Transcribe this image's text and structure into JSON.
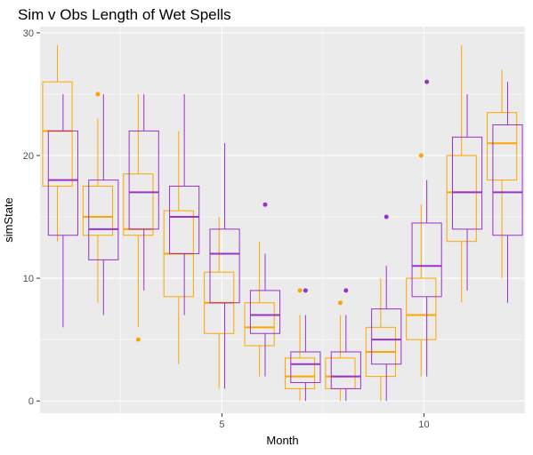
{
  "chart_data": {
    "type": "boxplot",
    "title": "Sim v Obs Length of Wet Spells",
    "xlabel": "Month",
    "ylabel": "simState",
    "xlim": [
      0.5,
      12.5
    ],
    "ylim": [
      -1,
      30.5
    ],
    "xticks": [
      5,
      10
    ],
    "yticks": [
      0,
      10,
      20,
      30
    ],
    "grid": true,
    "legend": "none",
    "colors": {
      "obs": "#FFA500",
      "sim": "#9932CC",
      "panel": "#EBEBEB",
      "grid": "#FFFFFF"
    },
    "series": [
      {
        "name": "obs",
        "color": "#FFA500",
        "boxes": [
          {
            "month": 1,
            "min": 13,
            "q1": 17.5,
            "median": 22,
            "q3": 26,
            "max": 29,
            "outliers": []
          },
          {
            "month": 2,
            "min": 8,
            "q1": 13.5,
            "median": 15,
            "q3": 17.5,
            "max": 23,
            "outliers": [
              25
            ]
          },
          {
            "month": 3,
            "min": 6,
            "q1": 13.5,
            "median": 14,
            "q3": 18.5,
            "max": 25,
            "outliers": [
              5
            ]
          },
          {
            "month": 4,
            "min": 3,
            "q1": 8.5,
            "median": 12,
            "q3": 15.5,
            "max": 22,
            "outliers": []
          },
          {
            "month": 5,
            "min": 1,
            "q1": 5.5,
            "median": 8,
            "q3": 10.5,
            "max": 15,
            "outliers": []
          },
          {
            "month": 6,
            "min": 2,
            "q1": 4.5,
            "median": 6,
            "q3": 8,
            "max": 13,
            "outliers": []
          },
          {
            "month": 7,
            "min": 0,
            "q1": 1,
            "median": 2,
            "q3": 3.5,
            "max": 7,
            "outliers": [
              9
            ]
          },
          {
            "month": 8,
            "min": 0,
            "q1": 1,
            "median": 2,
            "q3": 3.5,
            "max": 7,
            "outliers": [
              8
            ]
          },
          {
            "month": 9,
            "min": 0,
            "q1": 2,
            "median": 4,
            "q3": 6,
            "max": 10,
            "outliers": []
          },
          {
            "month": 10,
            "min": 2,
            "q1": 5,
            "median": 7,
            "q3": 10,
            "max": 16,
            "outliers": [
              20
            ]
          },
          {
            "month": 11,
            "min": 8,
            "q1": 13,
            "median": 17,
            "q3": 20,
            "max": 29,
            "outliers": []
          },
          {
            "month": 12,
            "min": 10,
            "q1": 18,
            "median": 21,
            "q3": 23.5,
            "max": 27,
            "outliers": []
          }
        ]
      },
      {
        "name": "sim",
        "color": "#9932CC",
        "boxes": [
          {
            "month": 1,
            "min": 6,
            "q1": 13.5,
            "median": 18,
            "q3": 22,
            "max": 25,
            "outliers": []
          },
          {
            "month": 2,
            "min": 7,
            "q1": 11.5,
            "median": 14,
            "q3": 18,
            "max": 25,
            "outliers": []
          },
          {
            "month": 3,
            "min": 9,
            "q1": 14,
            "median": 17,
            "q3": 22,
            "max": 25,
            "outliers": []
          },
          {
            "month": 4,
            "min": 7,
            "q1": 12,
            "median": 15,
            "q3": 17.5,
            "max": 25,
            "outliers": []
          },
          {
            "month": 5,
            "min": 1,
            "q1": 8,
            "median": 12,
            "q3": 14,
            "max": 21,
            "outliers": []
          },
          {
            "month": 6,
            "min": 2,
            "q1": 5.5,
            "median": 7,
            "q3": 9,
            "max": 12,
            "outliers": [
              16
            ]
          },
          {
            "month": 7,
            "min": 0,
            "q1": 1.5,
            "median": 3,
            "q3": 4,
            "max": 7,
            "outliers": [
              9
            ]
          },
          {
            "month": 8,
            "min": 0,
            "q1": 1,
            "median": 2,
            "q3": 4,
            "max": 7,
            "outliers": [
              9
            ]
          },
          {
            "month": 9,
            "min": 0,
            "q1": 3,
            "median": 5,
            "q3": 7.5,
            "max": 11,
            "outliers": [
              15
            ]
          },
          {
            "month": 10,
            "min": 2,
            "q1": 8.5,
            "median": 11,
            "q3": 14.5,
            "max": 18,
            "outliers": [
              26
            ]
          },
          {
            "month": 11,
            "min": 9,
            "q1": 14,
            "median": 17,
            "q3": 21.5,
            "max": 25,
            "outliers": []
          },
          {
            "month": 12,
            "min": 8,
            "q1": 13.5,
            "median": 17,
            "q3": 22.5,
            "max": 26,
            "outliers": []
          }
        ]
      }
    ]
  }
}
